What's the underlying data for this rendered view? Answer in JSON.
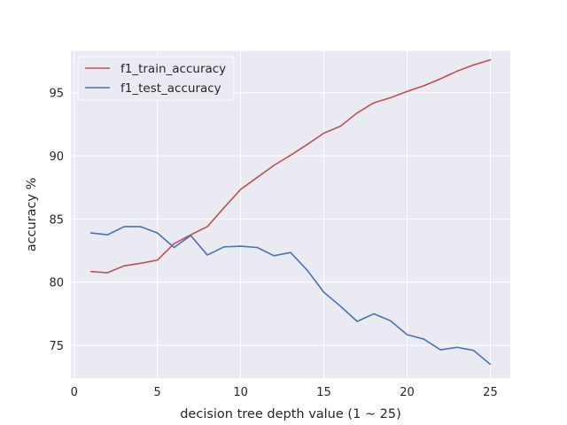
{
  "chart_data": {
    "type": "line",
    "xlabel": "decision tree depth value (1 ~ 25)",
    "ylabel": "accuracy %",
    "xlim": [
      -0.2,
      26.2
    ],
    "ylim": [
      72.4,
      98.3
    ],
    "xticks": [
      0,
      5,
      10,
      15,
      20,
      25
    ],
    "yticks": [
      75,
      80,
      85,
      90,
      95
    ],
    "grid": true,
    "legend_position": "top-left",
    "x": [
      1,
      2,
      3,
      4,
      5,
      6,
      7,
      8,
      9,
      10,
      11,
      12,
      13,
      14,
      15,
      16,
      17,
      18,
      19,
      20,
      21,
      22,
      23,
      24,
      25
    ],
    "series": [
      {
        "name": "f1_train_accuracy",
        "color": "#c44e52",
        "values": [
          80.85,
          80.75,
          81.3,
          81.5,
          81.75,
          83.05,
          83.75,
          84.4,
          85.9,
          87.35,
          88.3,
          89.25,
          90.05,
          90.9,
          91.8,
          92.35,
          93.4,
          94.2,
          94.6,
          95.1,
          95.55,
          96.1,
          96.7,
          97.2,
          97.6
        ]
      },
      {
        "name": "f1_test_accuracy",
        "color": "#4c72b0",
        "values": [
          83.9,
          83.75,
          84.4,
          84.4,
          83.9,
          82.75,
          83.7,
          82.15,
          82.8,
          82.85,
          82.75,
          82.1,
          82.35,
          80.95,
          79.2,
          78.1,
          76.9,
          77.5,
          76.95,
          75.85,
          75.5,
          74.65,
          74.85,
          74.6,
          73.5
        ]
      }
    ]
  }
}
